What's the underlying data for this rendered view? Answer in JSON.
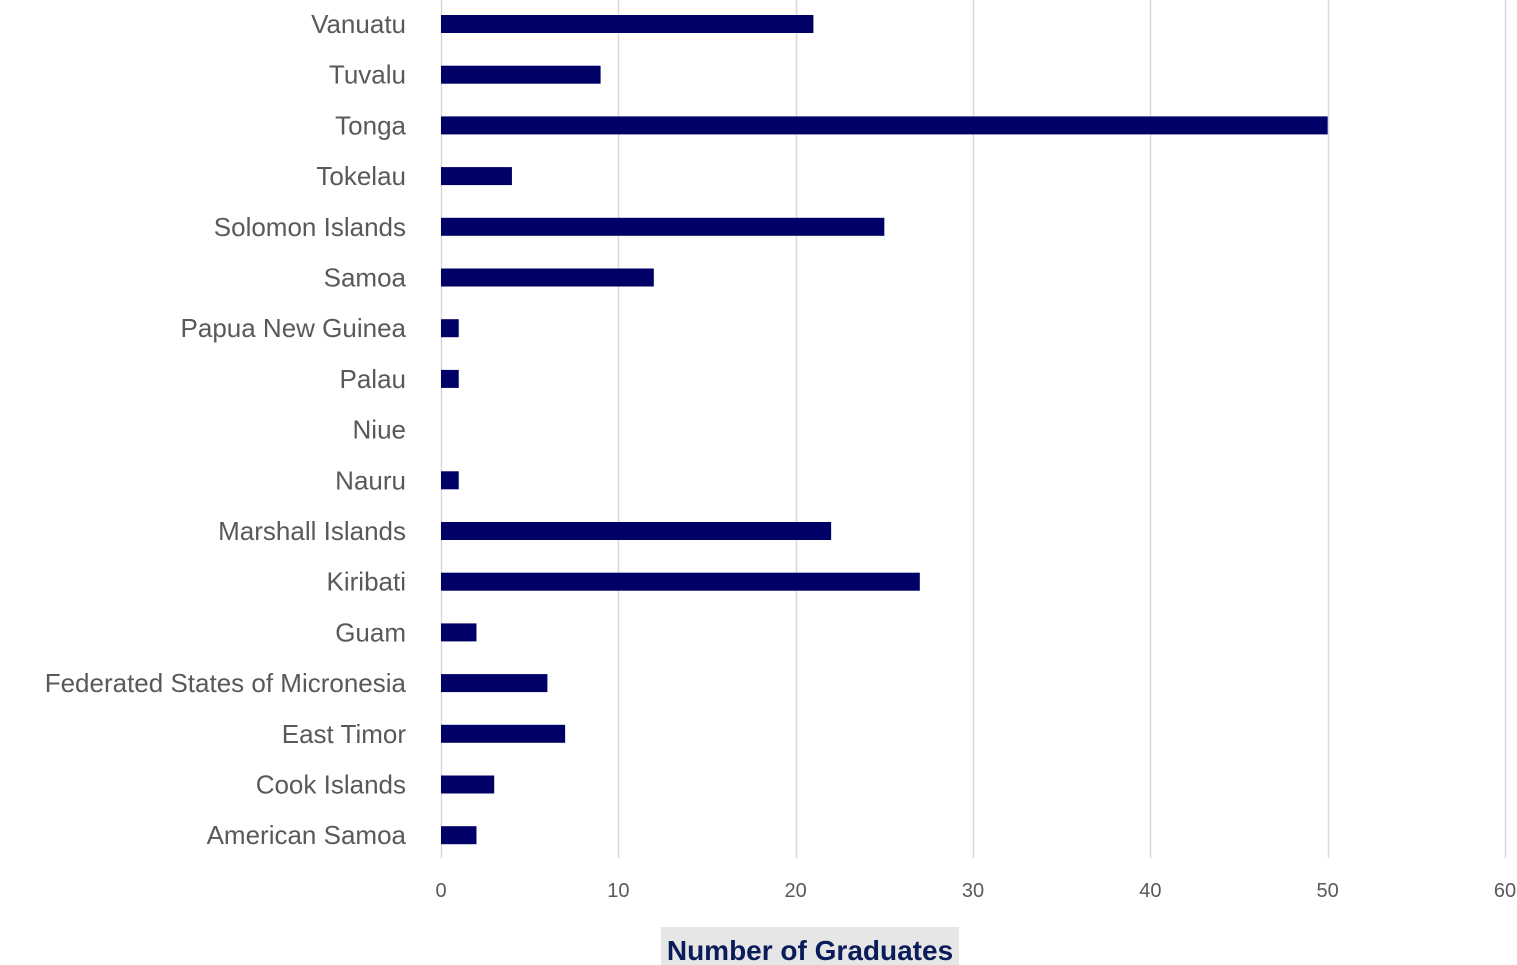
{
  "chart_data": {
    "type": "bar",
    "orientation": "horizontal",
    "categories": [
      "Vanuatu",
      "Tuvalu",
      "Tonga",
      "Tokelau",
      "Solomon Islands",
      "Samoa",
      "Papua New Guinea",
      "Palau",
      "Niue",
      "Nauru",
      "Marshall Islands",
      "Kiribati",
      "Guam",
      "Federated States of Micronesia",
      "East Timor",
      "Cook Islands",
      "American Samoa"
    ],
    "values": [
      21,
      9,
      50,
      4,
      25,
      12,
      1,
      1,
      0,
      1,
      22,
      27,
      2,
      6,
      7,
      3,
      2
    ],
    "title": "",
    "xlabel": "Number of Graduates",
    "ylabel": "",
    "xlim": [
      0,
      60
    ],
    "xticks": [
      0,
      10,
      20,
      30,
      40,
      50,
      60
    ],
    "grid": "vertical",
    "legend": "none",
    "bar_color": "#000066",
    "grid_color": "#d9d9d9",
    "label_color": "#595959",
    "axis_title_color": "#0b1c5a",
    "axis_title_background": "#e7e6e6"
  }
}
